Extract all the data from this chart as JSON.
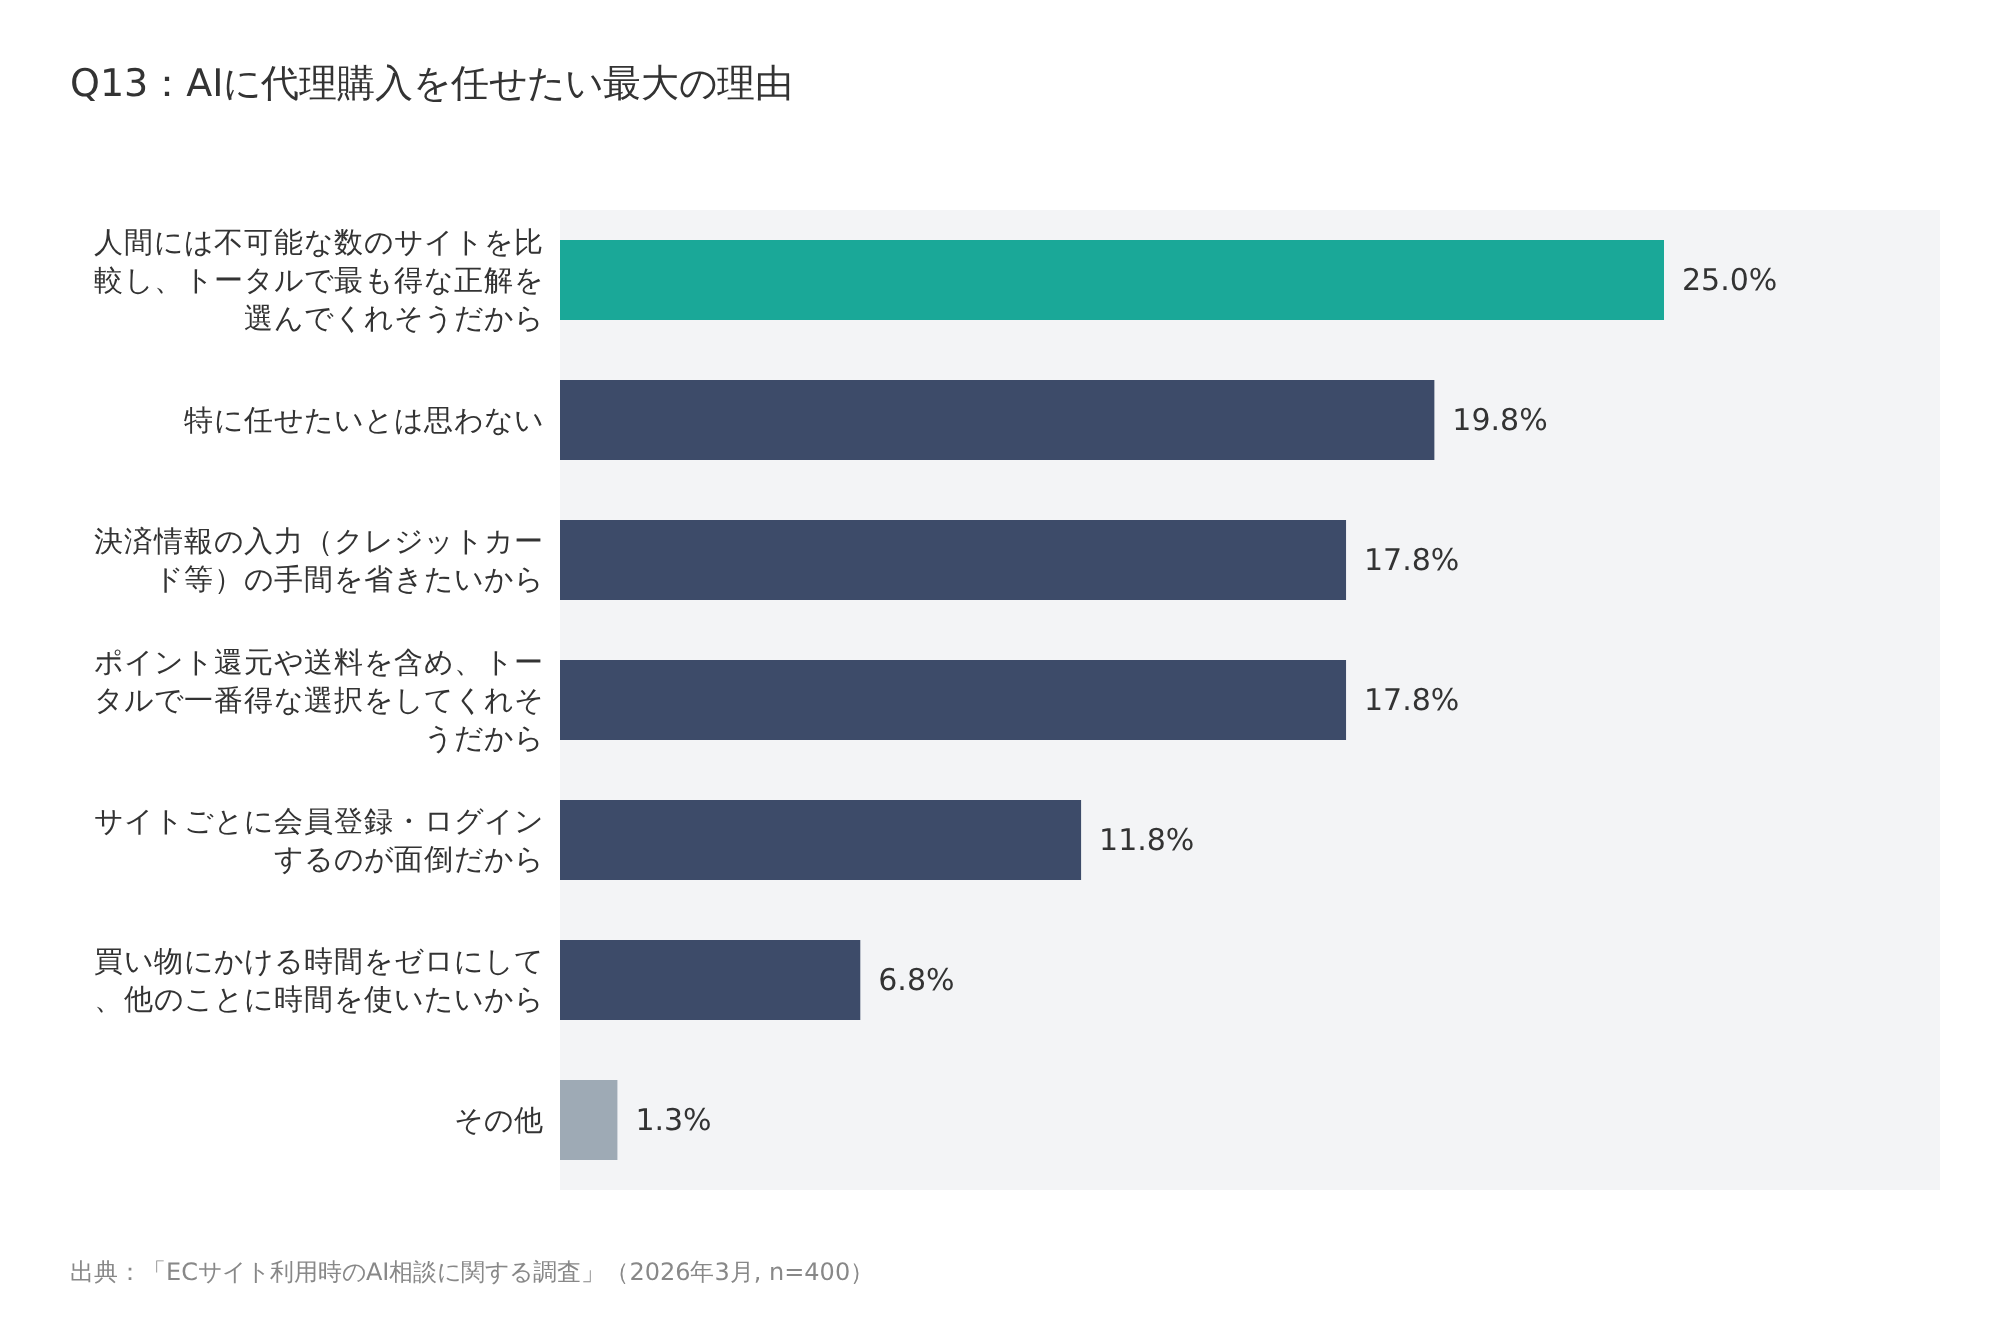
{
  "chart_data": {
    "type": "bar",
    "orientation": "horizontal",
    "title": "Q13：AIに代理購入を任せたい最大の理由",
    "categories": [
      "人間には不可能な数のサイトを比較し、トータルで最も得な正解を選んでくれそうだから",
      "特に任せたいとは思わない",
      "決済情報の入力（クレジットカード等）の手間を省きたいから",
      "ポイント還元や送料を含め、トータルで一番得な選択をしてくれそうだから",
      "サイトごとに会員登録・ログインするのが面倒だから",
      "買い物にかける時間をゼロにして、他のことに時間を使いたいから",
      "その他"
    ],
    "values": [
      25.0,
      19.8,
      17.8,
      17.8,
      11.8,
      6.8,
      1.3
    ],
    "colors": [
      "#1aa898",
      "#3d4b69",
      "#3d4b69",
      "#3d4b69",
      "#3d4b69",
      "#3d4b69",
      "#9eaab5"
    ],
    "value_labels": [
      "25.0%",
      "19.8%",
      "17.8%",
      "17.8%",
      "11.8%",
      "6.8%",
      "1.3%"
    ],
    "annotations": [
      "出典：「ECサイト利用時のAI相談に関する調査」（2026年3月, n=400）"
    ]
  }
}
